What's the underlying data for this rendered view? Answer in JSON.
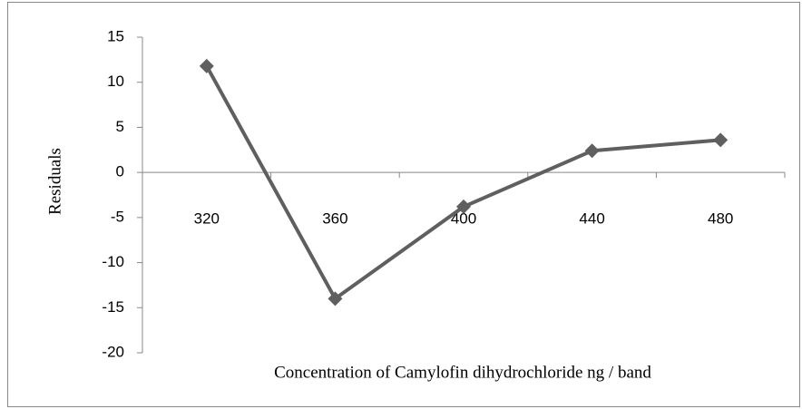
{
  "chart_data": {
    "type": "line",
    "y_label": "Residuals",
    "x_label": "Concentration of Camylofin dihydrochloride ng / band",
    "categories": [
      "320",
      "360",
      "400",
      "440",
      "480"
    ],
    "values": [
      11.8,
      -14,
      -3.8,
      2.4,
      3.6
    ],
    "color": "#5f5f5f",
    "ylim": [
      -20,
      15
    ],
    "yticks": [
      -20,
      -15,
      -10,
      -5,
      0,
      5,
      10,
      15
    ]
  }
}
